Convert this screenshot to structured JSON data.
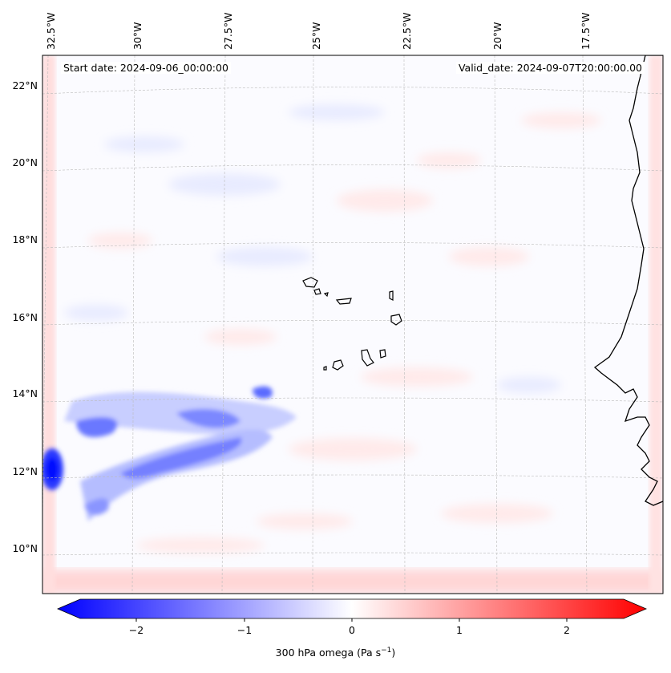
{
  "map": {
    "start_date": "Start date: 2024-09-06_00:00:00",
    "valid_date": "Valid_date: 2024-09-07T20:00:00.00",
    "lon_labels": [
      "32.5°W",
      "30°W",
      "27.5°W",
      "25°W",
      "22.5°W",
      "20°W",
      "17.5°W"
    ],
    "lat_labels": [
      "22°N",
      "20°N",
      "18°N",
      "16°N",
      "14°N",
      "12°N",
      "10°N"
    ],
    "variable": "300 hPa omega",
    "units": "Pa s",
    "units_exponent": "−1"
  },
  "colorbar": {
    "ticks": [
      "−2",
      "−1",
      "0",
      "1",
      "2"
    ],
    "range": [
      -2.7,
      2.7
    ],
    "low_color": "#0000ff",
    "mid_color": "#ffffff",
    "high_color": "#ff0000"
  }
}
